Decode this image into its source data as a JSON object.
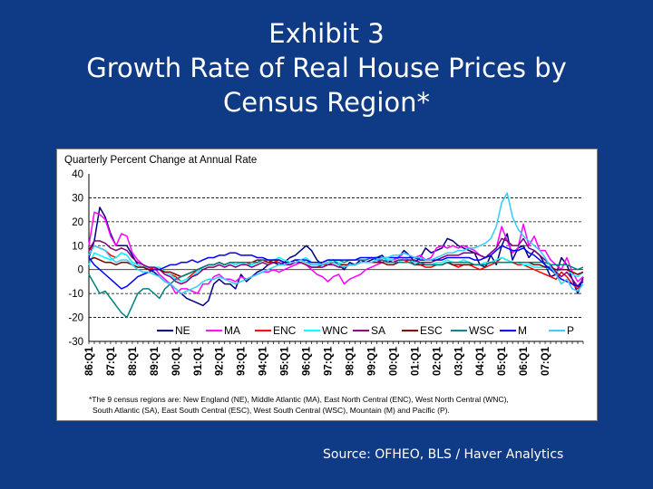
{
  "slide": {
    "title_lines": [
      "Exhibit 3",
      "Growth Rate of Real House Prices by",
      "Census Region*"
    ],
    "source": "Source: OFHEO, BLS / Haver Analytics",
    "footnote_lines": [
      "*The 9 census regions are:  New England (NE), Middle Atlantic (MA), East North Central (ENC), West North Central (WNC),",
      "South Atlantic (SA), East South Central (ESC), West South Central (WSC), Mountain (M) and Pacific (P)."
    ],
    "background_color": "#0f3a85"
  },
  "chart_data": {
    "type": "line",
    "title": "",
    "ylabel": "Quarterly Percent Change at Annual Rate",
    "xlabel": "",
    "ylim": [
      -30,
      40
    ],
    "yticks": [
      -30,
      -20,
      -10,
      0,
      10,
      20,
      30,
      40
    ],
    "grid": "horizontal dashed at 10, 20, 30",
    "legend_position": "bottom-inside",
    "x_tick_labels": [
      "86:Q1",
      "87:Q1",
      "88:Q1",
      "89:Q1",
      "90:Q1",
      "91:Q1",
      "92:Q1",
      "93:Q1",
      "94:Q1",
      "95:Q1",
      "96:Q1",
      "97:Q1",
      "98:Q1",
      "99:Q1",
      "00:Q1",
      "01:Q1",
      "02:Q1",
      "03:Q1",
      "04:Q1",
      "05:Q1",
      "06:Q1",
      "07:Q1"
    ],
    "x_range": [
      "86:Q1",
      "07:Q4"
    ],
    "series": [
      {
        "name": "NE",
        "color": "#000080",
        "values": [
          5,
          12,
          26,
          22,
          15,
          10,
          10,
          10,
          6,
          2,
          1,
          0,
          -1,
          -3,
          -5,
          -6,
          -8,
          -10,
          -12,
          -13,
          -14,
          -15,
          -13,
          -6,
          -4,
          -6,
          -6,
          -8,
          -2,
          -5,
          -3,
          -1,
          0,
          2,
          3,
          2,
          3,
          5,
          6,
          8,
          10,
          8,
          4,
          2,
          3,
          4,
          2,
          0,
          3,
          2,
          4,
          3,
          4,
          5,
          6,
          3,
          4,
          5,
          8,
          6,
          3,
          5,
          9,
          7,
          8,
          9,
          13,
          12,
          10,
          9,
          8,
          7,
          2,
          1,
          6,
          2,
          10,
          15,
          4,
          9,
          10,
          5,
          8,
          6,
          2,
          -3,
          -2,
          5,
          2,
          -4,
          -10,
          -3
        ]
      },
      {
        "name": "MA",
        "color": "#ff00ff",
        "values": [
          10,
          24,
          23,
          21,
          14,
          10,
          15,
          14,
          7,
          4,
          2,
          0,
          1,
          -2,
          -4,
          -6,
          -10,
          -8,
          -8,
          -9,
          -10,
          -6,
          -6,
          -3,
          -2,
          -4,
          -4,
          -5,
          -3,
          -4,
          -3,
          -2,
          -1,
          -1,
          0,
          -1,
          0,
          1,
          2,
          3,
          2,
          0,
          -2,
          -3,
          -5,
          -3,
          -2,
          -6,
          -4,
          -3,
          -2,
          0,
          1,
          2,
          3,
          4,
          4,
          5,
          7,
          6,
          5,
          6,
          4,
          5,
          9,
          10,
          9,
          10,
          9,
          10,
          9,
          8,
          6,
          5,
          7,
          9,
          18,
          12,
          7,
          9,
          19,
          10,
          14,
          8,
          8,
          4,
          2,
          0,
          5,
          -1,
          -5,
          -3
        ]
      },
      {
        "name": "ENC",
        "color": "#ff0000",
        "values": [
          8,
          10,
          9,
          8,
          6,
          5,
          7,
          6,
          3,
          2,
          1,
          1,
          0,
          0,
          -1,
          -2,
          -3,
          -5,
          -4,
          -2,
          0,
          1,
          2,
          2,
          3,
          2,
          3,
          2,
          3,
          3,
          2,
          3,
          4,
          3,
          3,
          4,
          3,
          2,
          3,
          3,
          2,
          1,
          1,
          2,
          2,
          3,
          2,
          1,
          2,
          2,
          3,
          3,
          3,
          3,
          4,
          3,
          3,
          3,
          3,
          4,
          2,
          2,
          1,
          1,
          2,
          2,
          3,
          2,
          1,
          2,
          2,
          1,
          0,
          1,
          2,
          3,
          5,
          4,
          3,
          2,
          2,
          1,
          0,
          -1,
          -2,
          -3,
          -4,
          -1,
          -3,
          -6,
          -8,
          -4
        ]
      },
      {
        "name": "WNC",
        "color": "#00ffff",
        "values": [
          2,
          7,
          6,
          5,
          4,
          5,
          7,
          6,
          3,
          2,
          1,
          1,
          1,
          1,
          -1,
          -2,
          -4,
          -5,
          -4,
          -3,
          -1,
          1,
          2,
          2,
          3,
          2,
          3,
          2,
          3,
          2,
          2,
          3,
          4,
          4,
          4,
          5,
          4,
          3,
          4,
          4,
          5,
          3,
          3,
          2,
          3,
          4,
          3,
          2,
          2,
          2,
          3,
          3,
          3,
          4,
          5,
          4,
          4,
          3,
          5,
          4,
          3,
          3,
          2,
          2,
          3,
          3,
          4,
          3,
          3,
          4,
          3,
          2,
          2,
          3,
          3,
          4,
          5,
          4,
          3,
          3,
          2,
          2,
          1,
          1,
          1,
          0,
          -1,
          0,
          0,
          -2,
          -3,
          -1
        ]
      },
      {
        "name": "SA",
        "color": "#800080",
        "values": [
          8,
          12,
          12,
          11,
          9,
          8,
          9,
          8,
          5,
          3,
          2,
          1,
          1,
          0,
          -2,
          -3,
          -5,
          -6,
          -5,
          -3,
          -2,
          0,
          1,
          1,
          2,
          1,
          2,
          1,
          2,
          2,
          1,
          2,
          3,
          2,
          3,
          3,
          2,
          2,
          3,
          3,
          2,
          1,
          1,
          1,
          2,
          2,
          1,
          1,
          2,
          2,
          3,
          3,
          3,
          3,
          4,
          3,
          3,
          4,
          4,
          4,
          4,
          3,
          3,
          3,
          4,
          5,
          6,
          6,
          6,
          7,
          7,
          7,
          6,
          5,
          7,
          9,
          13,
          12,
          10,
          10,
          13,
          9,
          8,
          6,
          4,
          2,
          -1,
          -3,
          -1,
          -4,
          -7,
          -4
        ]
      },
      {
        "name": "ESC",
        "color": "#800000",
        "values": [
          4,
          5,
          4,
          3,
          3,
          2,
          3,
          3,
          2,
          1,
          1,
          0,
          0,
          0,
          -1,
          -1,
          -2,
          -3,
          -2,
          -1,
          0,
          1,
          2,
          2,
          3,
          2,
          3,
          3,
          3,
          3,
          3,
          4,
          4,
          3,
          4,
          4,
          3,
          3,
          4,
          4,
          3,
          2,
          2,
          2,
          3,
          3,
          2,
          2,
          2,
          2,
          3,
          3,
          3,
          3,
          3,
          2,
          2,
          3,
          3,
          3,
          2,
          2,
          2,
          2,
          2,
          2,
          3,
          2,
          2,
          2,
          2,
          2,
          2,
          2,
          3,
          3,
          3,
          3,
          3,
          3,
          3,
          3,
          2,
          2,
          1,
          1,
          0,
          0,
          0,
          -1,
          -2,
          -1
        ]
      },
      {
        "name": "WSC",
        "color": "#008080",
        "values": [
          -2,
          -6,
          -10,
          -9,
          -12,
          -15,
          -18,
          -20,
          -15,
          -10,
          -8,
          -8,
          -10,
          -12,
          -8,
          -6,
          -4,
          -3,
          -2,
          -1,
          0,
          1,
          2,
          2,
          3,
          2,
          3,
          3,
          3,
          3,
          3,
          3,
          4,
          4,
          4,
          4,
          3,
          3,
          3,
          4,
          3,
          3,
          3,
          3,
          4,
          4,
          4,
          3,
          4,
          4,
          4,
          4,
          5,
          4,
          4,
          3,
          3,
          3,
          3,
          3,
          2,
          3,
          2,
          2,
          2,
          2,
          3,
          3,
          3,
          3,
          3,
          2,
          2,
          2,
          3,
          3,
          3,
          3,
          3,
          3,
          3,
          3,
          3,
          3,
          3,
          2,
          2,
          2,
          2,
          1,
          0,
          1
        ]
      },
      {
        "name": "M",
        "color": "#0000ff",
        "values": [
          5,
          2,
          0,
          -2,
          -4,
          -6,
          -8,
          -7,
          -5,
          -3,
          -2,
          -1,
          0,
          0,
          1,
          2,
          2,
          3,
          3,
          4,
          3,
          4,
          5,
          5,
          6,
          6,
          7,
          7,
          6,
          6,
          6,
          5,
          5,
          4,
          4,
          4,
          3,
          3,
          4,
          4,
          4,
          3,
          3,
          3,
          4,
          4,
          4,
          4,
          4,
          4,
          5,
          5,
          5,
          5,
          5,
          5,
          5,
          5,
          5,
          5,
          5,
          4,
          4,
          4,
          4,
          4,
          5,
          5,
          5,
          5,
          5,
          4,
          4,
          5,
          6,
          8,
          10,
          9,
          8,
          8,
          9,
          7,
          6,
          4,
          2,
          0,
          -2,
          -4,
          -5,
          -6,
          -7,
          -5
        ]
      },
      {
        "name": "P",
        "color": "#33ccff",
        "values": [
          6,
          10,
          9,
          8,
          5,
          3,
          4,
          4,
          2,
          0,
          -1,
          -1,
          -2,
          -3,
          -5,
          -6,
          -8,
          -10,
          -9,
          -8,
          -7,
          -5,
          -4,
          -4,
          -3,
          -4,
          -5,
          -6,
          -5,
          -4,
          -3,
          -2,
          -1,
          0,
          1,
          2,
          2,
          3,
          3,
          4,
          3,
          2,
          2,
          2,
          3,
          3,
          2,
          1,
          2,
          2,
          3,
          3,
          3,
          4,
          5,
          5,
          6,
          6,
          7,
          6,
          5,
          5,
          4,
          4,
          5,
          6,
          7,
          7,
          8,
          8,
          9,
          9,
          10,
          11,
          13,
          18,
          28,
          32,
          22,
          17,
          14,
          12,
          10,
          8,
          5,
          1,
          -2,
          -6,
          -4,
          -8,
          -9,
          -6
        ]
      }
    ]
  }
}
